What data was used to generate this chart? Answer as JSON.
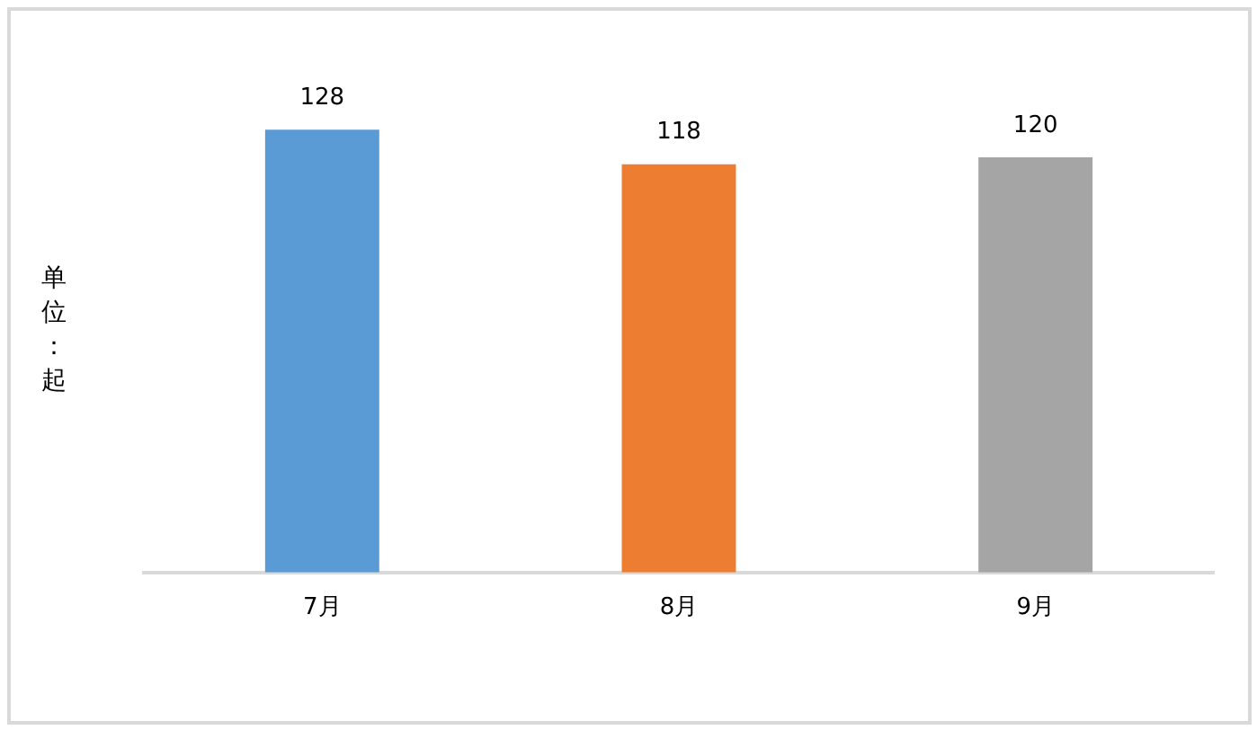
{
  "chart_data": {
    "type": "bar",
    "ylabel": "单位：起",
    "categories": [
      "7月",
      "8月",
      "9月"
    ],
    "values": [
      128,
      118,
      120
    ],
    "colors": [
      "#5b9bd5",
      "#ed7d31",
      "#a5a5a5"
    ],
    "tick_labels": "x",
    "data_labels": true
  }
}
